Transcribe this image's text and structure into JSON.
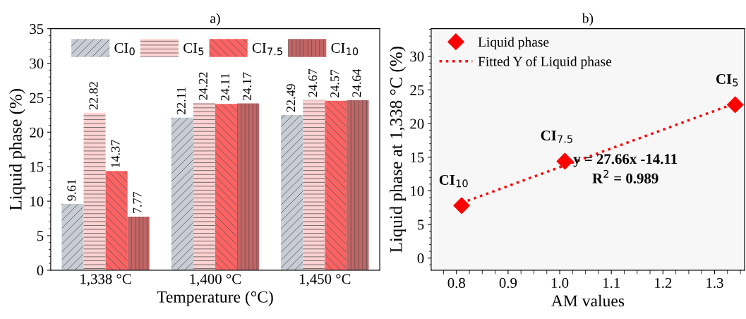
{
  "chart_data": [
    {
      "type": "bar",
      "title": "a)",
      "xlabel": "Temperature (°C)",
      "ylabel": "Liquid phase (%)",
      "categories": [
        "1,338 °C",
        "1,400 °C",
        "1,450 °C"
      ],
      "series": [
        {
          "name": "CI$_{0}$",
          "color": "#c8ccd4",
          "values": [
            9.61,
            22.11,
            22.49
          ]
        },
        {
          "name": "CI$_{5}$",
          "color": "#ffd2d2",
          "values": [
            22.82,
            24.22,
            24.67
          ]
        },
        {
          "name": "CI$_{7.5}$",
          "color": "#ff6262",
          "values": [
            14.37,
            24.11,
            24.57
          ]
        },
        {
          "name": "CI$_{10}$",
          "color": "#c46464",
          "values": [
            7.77,
            24.17,
            24.64
          ]
        }
      ],
      "ylim": [
        0,
        35
      ],
      "yticks": [
        0,
        5,
        10,
        15,
        20,
        25,
        30,
        35
      ],
      "data_labels": true,
      "legend": "top",
      "grid": false
    },
    {
      "type": "scatter",
      "title": "b)",
      "xlabel": "AM values",
      "ylabel": "Liquid phase at 1,338 °C (%)",
      "series": [
        {
          "name": "Liquid phase",
          "color": "#ff0000",
          "type": "scatter",
          "marker": "diamond",
          "x": [
            0.81,
            1.01,
            1.34
          ],
          "values": [
            7.8,
            14.4,
            22.8
          ]
        },
        {
          "name": "Fitted Y of Liquid phase",
          "color": "#ff0000",
          "type": "line",
          "line_style": "dotted",
          "marker": "none",
          "x": [
            0.81,
            1.34
          ],
          "values": [
            8.2,
            23.0
          ]
        }
      ],
      "xlim": [
        0.751,
        1.358
      ],
      "xticks": [
        0.8,
        0.9,
        {
          "value": 1.0,
          "label": "1.0"
        },
        1.1,
        1.2,
        1.3
      ],
      "ylim": [
        -1.8,
        34.1
      ],
      "yticks": [
        0,
        5,
        10,
        15,
        20,
        25,
        30
      ],
      "annotations": [
        {
          "text": "CI$_{10}$",
          "x": 0.81,
          "y": 7.8
        },
        {
          "text": "CI$_{7.5}$",
          "x": 1.01,
          "y": 14.4
        },
        {
          "text": "CI$_{5}$",
          "x": 1.34,
          "y": 22.8
        },
        "y = 27.66x -14.11",
        "R$^{2}$ = 0.989"
      ],
      "legend": "top left",
      "grid": false
    }
  ]
}
